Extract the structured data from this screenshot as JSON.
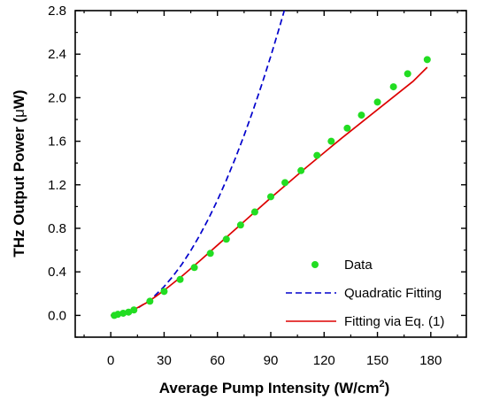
{
  "chart_data": {
    "type": "scatter",
    "title": "",
    "xlabel_main": "Average Pump Intensity (W/cm",
    "xlabel_sup": "2",
    "xlabel_end": ")",
    "ylabel_pre": "THz Output Power (",
    "ylabel_mu": "μ",
    "ylabel_post": "W)",
    "xlim": [
      -20,
      200
    ],
    "ylim": [
      -0.2,
      2.8
    ],
    "xticks": [
      0,
      30,
      60,
      90,
      120,
      150,
      180
    ],
    "xtick_labels": [
      "0",
      "30",
      "60",
      "90",
      "120",
      "150",
      "180"
    ],
    "yticks": [
      0.0,
      0.4,
      0.8,
      1.2,
      1.6,
      2.0,
      2.4,
      2.8
    ],
    "ytick_labels": [
      "0.0",
      "0.4",
      "0.8",
      "1.2",
      "1.6",
      "2.0",
      "2.4",
      "2.8"
    ],
    "legend_position": "bottom-right",
    "grid": false,
    "series": [
      {
        "name": "Data",
        "kind": "points",
        "color": "#22dd22",
        "x": [
          2,
          4,
          7,
          10,
          13,
          22,
          30,
          39,
          47,
          56,
          65,
          73,
          81,
          90,
          98,
          107,
          116,
          124,
          133,
          141,
          150,
          159,
          167,
          178
        ],
        "y": [
          0.0,
          0.01,
          0.02,
          0.03,
          0.05,
          0.13,
          0.22,
          0.33,
          0.44,
          0.57,
          0.7,
          0.83,
          0.95,
          1.09,
          1.22,
          1.33,
          1.47,
          1.6,
          1.72,
          1.84,
          1.96,
          2.1,
          2.22,
          2.35
        ]
      },
      {
        "name": "Quadratic Fitting",
        "kind": "line",
        "dash": true,
        "color": "#0000cc",
        "x": [
          0,
          5,
          10,
          15,
          20,
          25,
          30,
          35,
          40,
          45,
          50,
          55,
          60,
          65,
          70,
          75,
          80,
          85,
          90,
          95,
          99
        ],
        "y": [
          0.0,
          0.0073,
          0.0294,
          0.066,
          0.118,
          0.184,
          0.265,
          0.36,
          0.47,
          0.595,
          0.735,
          0.889,
          1.058,
          1.242,
          1.441,
          1.654,
          1.882,
          2.124,
          2.381,
          2.653,
          2.88
        ]
      },
      {
        "name": "Fitting via Eq. (1)",
        "kind": "line",
        "dash": false,
        "color": "#dd0000",
        "x": [
          0,
          5,
          10,
          15,
          20,
          25,
          30,
          40,
          50,
          60,
          70,
          80,
          90,
          100,
          110,
          120,
          130,
          140,
          150,
          160,
          170,
          178
        ],
        "y": [
          0.0,
          0.012,
          0.035,
          0.07,
          0.115,
          0.17,
          0.23,
          0.36,
          0.5,
          0.645,
          0.79,
          0.935,
          1.08,
          1.22,
          1.36,
          1.495,
          1.63,
          1.76,
          1.89,
          2.02,
          2.15,
          2.28
        ]
      }
    ]
  }
}
